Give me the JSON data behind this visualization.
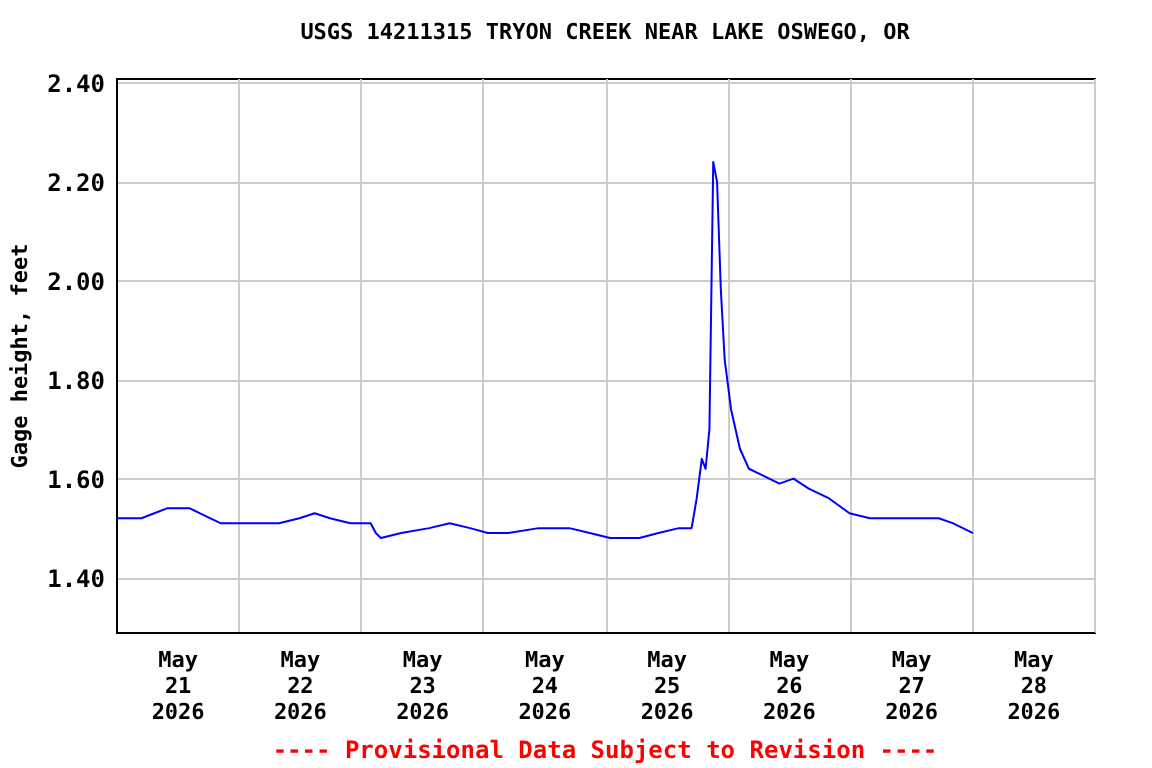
{
  "chart_data": {
    "type": "line",
    "title": "USGS 14211315 TRYON CREEK NEAR LAKE OSWEGO, OR",
    "ylabel": "Gage height, feet",
    "annotations": [
      "---- Provisional Data Subject to Revision ----"
    ],
    "x": [
      "2026-05-21T00:00",
      "2026-05-21T05:00",
      "2026-05-21T10:00",
      "2026-05-21T14:30",
      "2026-05-21T16:30",
      "2026-05-21T20:30",
      "2026-05-22T08:00",
      "2026-05-22T12:00",
      "2026-05-22T15:00",
      "2026-05-22T18:00",
      "2026-05-22T22:00",
      "2026-05-23T02:00",
      "2026-05-23T03:00",
      "2026-05-23T04:00",
      "2026-05-23T08:00",
      "2026-05-23T13:30",
      "2026-05-23T17:30",
      "2026-05-23T21:30",
      "2026-05-24T01:00",
      "2026-05-24T05:00",
      "2026-05-24T11:00",
      "2026-05-24T17:00",
      "2026-05-24T21:00",
      "2026-05-25T01:00",
      "2026-05-25T06:45",
      "2026-05-25T10:30",
      "2026-05-25T14:30",
      "2026-05-25T17:00",
      "2026-05-25T18:00",
      "2026-05-25T19:00",
      "2026-05-25T19:45",
      "2026-05-25T20:30",
      "2026-05-25T21:15",
      "2026-05-25T22:00",
      "2026-05-25T22:45",
      "2026-05-25T23:30",
      "2026-05-26T00:45",
      "2026-05-26T02:30",
      "2026-05-26T04:15",
      "2026-05-26T06:15",
      "2026-05-26T10:15",
      "2026-05-26T13:00",
      "2026-05-26T16:00",
      "2026-05-26T20:00",
      "2026-05-27T00:00",
      "2026-05-27T04:00",
      "2026-05-27T09:45",
      "2026-05-27T17:30",
      "2026-05-27T20:15",
      "2026-05-27T22:15",
      "2026-05-28T00:15"
    ],
    "series": [
      {
        "color": "#0000ff",
        "values": [
          1.52,
          1.52,
          1.54,
          1.54,
          1.53,
          1.51,
          1.51,
          1.52,
          1.53,
          1.52,
          1.51,
          1.51,
          1.49,
          1.48,
          1.49,
          1.5,
          1.51,
          1.5,
          1.49,
          1.49,
          1.5,
          1.5,
          1.49,
          1.48,
          1.48,
          1.49,
          1.5,
          1.5,
          1.56,
          1.64,
          1.62,
          1.7,
          2.24,
          2.2,
          1.98,
          1.84,
          1.74,
          1.66,
          1.62,
          1.61,
          1.59,
          1.6,
          1.58,
          1.56,
          1.53,
          1.52,
          1.52,
          1.52,
          1.51,
          1.5,
          1.49
        ]
      }
    ],
    "xlim": [
      "2026-05-21T00:00",
      "2026-05-29T00:00"
    ],
    "xticks": [
      {
        "value": "2026-05-21T00:00",
        "label": null
      },
      {
        "value": "2026-05-21T12:00",
        "label": "May 21 2026"
      },
      {
        "value": "2026-05-22T00:00",
        "label": null
      },
      {
        "value": "2026-05-22T12:00",
        "label": "May 22 2026"
      },
      {
        "value": "2026-05-23T00:00",
        "label": null
      },
      {
        "value": "2026-05-23T12:00",
        "label": "May 23 2026"
      },
      {
        "value": "2026-05-24T00:00",
        "label": null
      },
      {
        "value": "2026-05-24T12:00",
        "label": "May 24 2026"
      },
      {
        "value": "2026-05-25T00:00",
        "label": null
      },
      {
        "value": "2026-05-25T12:00",
        "label": "May 25 2026"
      },
      {
        "value": "2026-05-26T00:00",
        "label": null
      },
      {
        "value": "2026-05-26T12:00",
        "label": "May 26 2026"
      },
      {
        "value": "2026-05-27T00:00",
        "label": null
      },
      {
        "value": "2026-05-27T12:00",
        "label": "May 27 2026"
      },
      {
        "value": "2026-05-28T00:00",
        "label": null
      },
      {
        "value": "2026-05-28T12:00",
        "label": "May 28 2026"
      },
      {
        "value": "2026-05-29T00:00",
        "label": null
      }
    ],
    "ylim": [
      1.29,
      2.41
    ],
    "yticks": [
      {
        "value": 1.4,
        "label": "1.40"
      },
      {
        "value": 1.6,
        "label": "1.60"
      },
      {
        "value": 1.8,
        "label": "1.80"
      },
      {
        "value": 2.0,
        "label": "2.00"
      },
      {
        "value": 2.2,
        "label": "2.20"
      },
      {
        "value": 2.4,
        "label": "2.40"
      }
    ],
    "grid": true,
    "marker": "none",
    "line_style": "solid"
  }
}
